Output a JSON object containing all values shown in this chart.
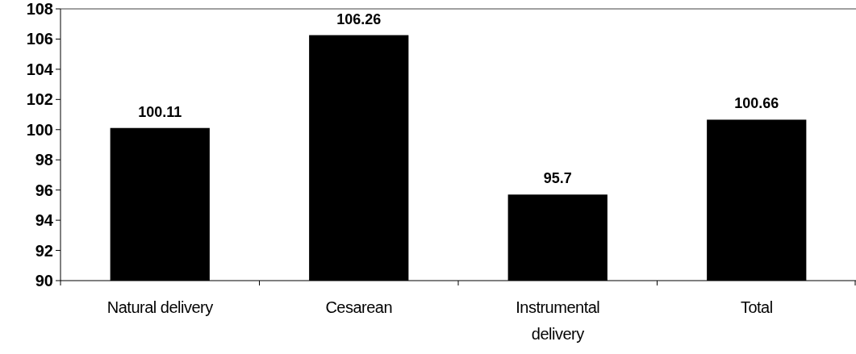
{
  "chart_data": {
    "type": "bar",
    "categories": [
      "Natural delivery",
      "Cesarean",
      "Instrumental delivery",
      "Total"
    ],
    "values": [
      100.11,
      106.26,
      95.7,
      100.66
    ],
    "color": "#000000",
    "ylim": [
      90,
      108
    ],
    "yticks": [
      90,
      92,
      94,
      96,
      98,
      100,
      102,
      104,
      106,
      108
    ],
    "grid": false,
    "data_labels": true
  }
}
